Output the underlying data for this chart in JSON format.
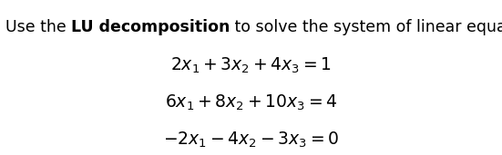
{
  "title_normal1": "Use the ",
  "title_bold": "LU decomposition",
  "title_normal2": " to solve the system of linear equations.",
  "eq1": "$2x_1 + 3x_2 + 4x_3 = 1$",
  "eq2": "$6x_1 + 8x_2 + 10x_3 = 4$",
  "eq3": "$-2x_1 - 4x_2 - 3x_3 = 0$",
  "bg_color": "#ffffff",
  "text_color": "#000000",
  "title_fontsize": 12.5,
  "eq_fontsize": 13.5,
  "fig_width": 5.51,
  "fig_height": 1.71,
  "dpi": 100
}
